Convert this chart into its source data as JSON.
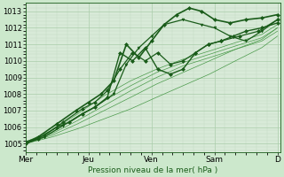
{
  "bg_color": "#cce8cc",
  "plot_bg_color": "#d8ead8",
  "grid_color_major": "#aaccaa",
  "grid_color_minor": "#c0d8c0",
  "line_dark": "#1a5c1a",
  "line_med": "#2e7d2e",
  "line_light": "#4a9a4a",
  "xlabel": "Pression niveau de la mer( hPa )",
  "ylim": [
    1004.5,
    1013.5
  ],
  "yticks": [
    1005,
    1006,
    1007,
    1008,
    1009,
    1010,
    1011,
    1012,
    1013
  ],
  "xlim": [
    0,
    4.05
  ],
  "xtick_labels": [
    "Mer",
    "Jeu",
    "Ven",
    "Sam",
    "D"
  ],
  "xtick_positions": [
    0,
    1,
    2,
    3,
    4
  ],
  "thin_lines": [
    {
      "x": [
        0,
        0.42,
        0.83,
        1.25,
        1.67,
        2.08,
        2.5,
        2.92,
        3.33,
        3.75,
        4.0
      ],
      "y": [
        1005.0,
        1005.4,
        1005.9,
        1006.5,
        1007.1,
        1007.8,
        1008.5,
        1009.2,
        1010.0,
        1010.8,
        1011.5
      ]
    },
    {
      "x": [
        0,
        0.42,
        0.83,
        1.25,
        1.67,
        2.08,
        2.5,
        2.92,
        3.33,
        3.75,
        4.0
      ],
      "y": [
        1005.0,
        1005.5,
        1006.2,
        1007.0,
        1007.8,
        1008.6,
        1009.3,
        1010.0,
        1010.7,
        1011.3,
        1012.0
      ]
    },
    {
      "x": [
        0,
        0.42,
        0.83,
        1.25,
        1.67,
        2.08,
        2.5,
        2.92,
        3.33,
        3.75,
        4.0
      ],
      "y": [
        1005.0,
        1005.6,
        1006.4,
        1007.3,
        1008.2,
        1009.0,
        1009.7,
        1010.2,
        1010.7,
        1011.2,
        1011.8
      ]
    },
    {
      "x": [
        0,
        0.42,
        0.83,
        1.25,
        1.67,
        2.08,
        2.5,
        2.92,
        3.33,
        3.75,
        4.0
      ],
      "y": [
        1005.0,
        1005.7,
        1006.6,
        1007.6,
        1008.5,
        1009.3,
        1009.9,
        1010.4,
        1010.9,
        1011.4,
        1012.0
      ]
    },
    {
      "x": [
        0,
        0.42,
        0.83,
        1.25,
        1.67,
        2.08,
        2.5,
        2.92,
        3.33,
        3.75,
        4.0
      ],
      "y": [
        1005.1,
        1005.8,
        1006.8,
        1007.9,
        1008.8,
        1009.5,
        1010.1,
        1010.6,
        1011.1,
        1011.6,
        1012.2
      ]
    }
  ],
  "wavy_lines": [
    {
      "x": [
        0,
        0.2,
        0.5,
        0.7,
        0.9,
        1.1,
        1.3,
        1.5,
        1.7,
        1.9,
        2.1,
        2.3,
        2.5,
        2.7,
        2.9,
        3.1,
        3.3,
        3.5,
        3.75,
        4.0
      ],
      "y": [
        1005.0,
        1005.3,
        1006.0,
        1006.3,
        1006.8,
        1007.2,
        1007.8,
        1010.5,
        1010.0,
        1010.8,
        1009.5,
        1009.2,
        1009.5,
        1010.5,
        1011.0,
        1011.2,
        1011.5,
        1011.8,
        1012.0,
        1012.3
      ],
      "marker": "D",
      "lw": 1.0
    },
    {
      "x": [
        0,
        0.2,
        0.5,
        0.8,
        1.0,
        1.2,
        1.4,
        1.6,
        1.8,
        2.0,
        2.2,
        2.4,
        2.6,
        2.8,
        3.0,
        3.25,
        3.5,
        3.75,
        4.0
      ],
      "y": [
        1005.0,
        1005.4,
        1006.2,
        1007.0,
        1007.5,
        1008.0,
        1008.8,
        1011.0,
        1010.2,
        1011.2,
        1012.2,
        1012.8,
        1013.2,
        1013.0,
        1012.5,
        1012.3,
        1012.5,
        1012.6,
        1012.8
      ],
      "marker": "D",
      "lw": 1.2
    },
    {
      "x": [
        0,
        0.3,
        0.6,
        0.9,
        1.1,
        1.3,
        1.5,
        1.7,
        1.9,
        2.1,
        2.3,
        2.5,
        2.7,
        2.9,
        3.1,
        3.4,
        3.7,
        4.0
      ],
      "y": [
        1005.1,
        1005.5,
        1006.3,
        1007.1,
        1007.5,
        1008.2,
        1009.5,
        1010.5,
        1010.0,
        1010.5,
        1009.8,
        1010.0,
        1010.5,
        1011.0,
        1011.2,
        1011.5,
        1011.8,
        1012.5
      ],
      "marker": "D",
      "lw": 0.9
    },
    {
      "x": [
        0,
        0.3,
        0.6,
        0.9,
        1.1,
        1.4,
        1.6,
        1.8,
        2.0,
        2.2,
        2.5,
        2.8,
        3.0,
        3.25,
        3.5,
        3.75,
        4.0
      ],
      "y": [
        1005.0,
        1005.4,
        1006.1,
        1006.8,
        1007.2,
        1008.0,
        1009.8,
        1010.8,
        1011.5,
        1012.2,
        1012.5,
        1012.2,
        1012.0,
        1011.5,
        1011.2,
        1011.8,
        1012.5
      ],
      "marker": "v",
      "lw": 0.9
    }
  ]
}
